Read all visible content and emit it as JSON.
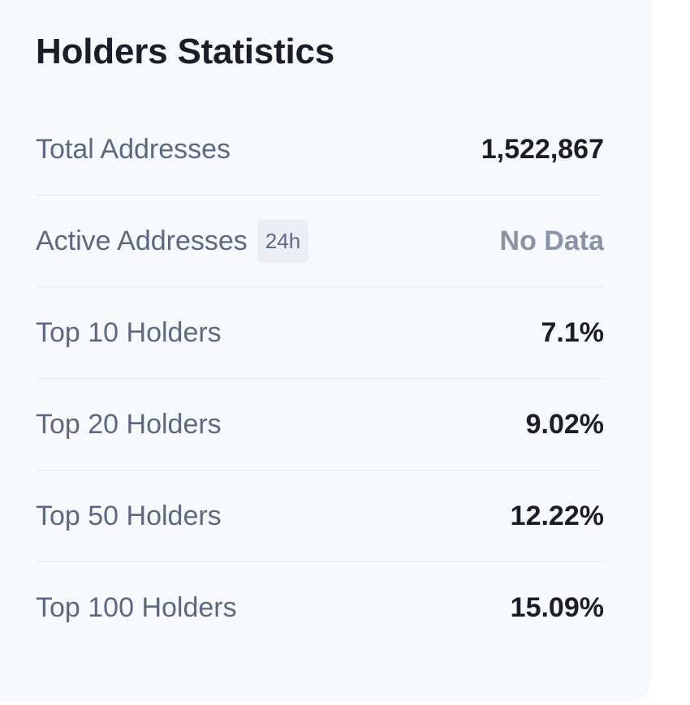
{
  "card": {
    "title": "Holders Statistics",
    "rows": [
      {
        "label": "Total Addresses",
        "value": "1,522,867"
      },
      {
        "label": "Active Addresses",
        "badge": "24h",
        "value": "No Data"
      },
      {
        "label": "Top 10 Holders",
        "value": "7.1%"
      },
      {
        "label": "Top 20 Holders",
        "value": "9.02%"
      },
      {
        "label": "Top 50 Holders",
        "value": "12.22%"
      },
      {
        "label": "Top 100 Holders",
        "value": "15.09%"
      }
    ]
  },
  "colors": {
    "card_background": "#f8f9fc",
    "title": "#1b1d28",
    "label": "#5c6882",
    "value": "#1b1d28",
    "muted_value": "#8a93a6",
    "divider": "#e9ebf1",
    "badge_background": "#eceef3"
  }
}
